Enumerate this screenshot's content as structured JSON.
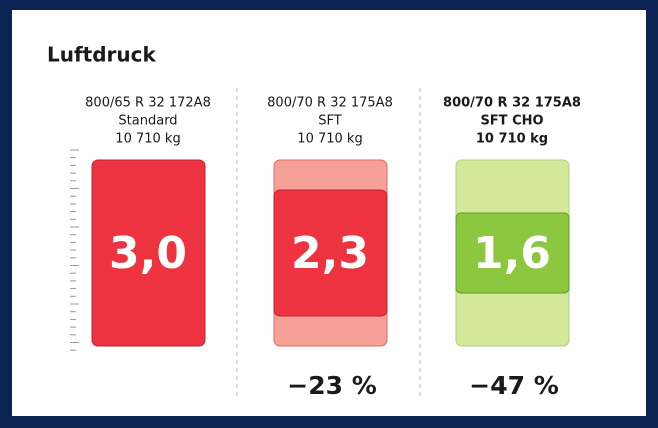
{
  "title": "Luftdruck",
  "columns": [
    {
      "tire": "800/65 R 32 172A8",
      "variant": "Standard",
      "load": "10 710 kg",
      "pressure": "3,0"
    },
    {
      "tire": "800/70 R 32 175A8",
      "variant": "SFT",
      "load": "10 710 kg",
      "pressure": "2,3",
      "change": "−23 %"
    },
    {
      "tire": "800/70 R 32 175A8",
      "variant": "SFT CHO",
      "load": "10 710 kg",
      "pressure": "1,6",
      "change": "−47 %"
    }
  ]
}
